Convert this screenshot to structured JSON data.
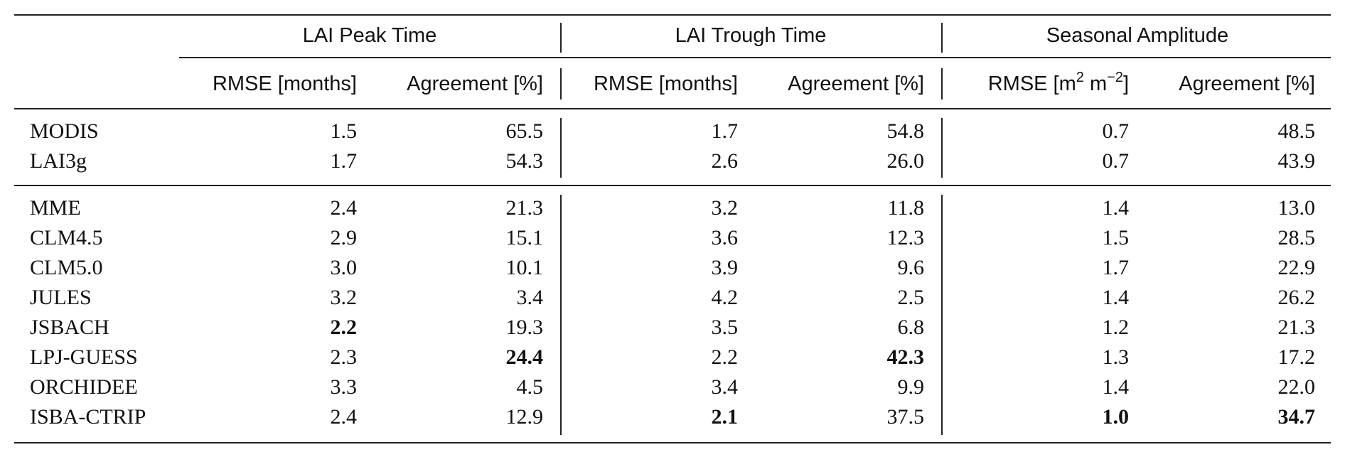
{
  "groups": [
    {
      "label": "LAI Peak Time"
    },
    {
      "label": "LAI Trough Time"
    },
    {
      "label": "Seasonal Amplitude"
    }
  ],
  "subheaders": {
    "rmse_months": "RMSE [months]",
    "agreement": "Agreement [%]",
    "rmse_amp_prefix": "RMSE [m",
    "rmse_amp_exp1": "2",
    "rmse_amp_mid": " m",
    "rmse_amp_exp2": "−2",
    "rmse_amp_suffix": "]"
  },
  "obs_rows": [
    {
      "name": "MODIS",
      "values": [
        "1.5",
        "65.5",
        "1.7",
        "54.8",
        "0.7",
        "48.5"
      ],
      "bold": [
        false,
        false,
        false,
        false,
        false,
        false
      ]
    },
    {
      "name": "LAI3g",
      "values": [
        "1.7",
        "54.3",
        "2.6",
        "26.0",
        "0.7",
        "43.9"
      ],
      "bold": [
        false,
        false,
        false,
        false,
        false,
        false
      ]
    }
  ],
  "model_rows": [
    {
      "name": "MME",
      "values": [
        "2.4",
        "21.3",
        "3.2",
        "11.8",
        "1.4",
        "13.0"
      ],
      "bold": [
        false,
        false,
        false,
        false,
        false,
        false
      ]
    },
    {
      "name": "CLM4.5",
      "values": [
        "2.9",
        "15.1",
        "3.6",
        "12.3",
        "1.5",
        "28.5"
      ],
      "bold": [
        false,
        false,
        false,
        false,
        false,
        false
      ]
    },
    {
      "name": "CLM5.0",
      "values": [
        "3.0",
        "10.1",
        "3.9",
        "9.6",
        "1.7",
        "22.9"
      ],
      "bold": [
        false,
        false,
        false,
        false,
        false,
        false
      ]
    },
    {
      "name": "JULES",
      "values": [
        "3.2",
        "3.4",
        "4.2",
        "2.5",
        "1.4",
        "26.2"
      ],
      "bold": [
        false,
        false,
        false,
        false,
        false,
        false
      ]
    },
    {
      "name": "JSBACH",
      "values": [
        "2.2",
        "19.3",
        "3.5",
        "6.8",
        "1.2",
        "21.3"
      ],
      "bold": [
        true,
        false,
        false,
        false,
        false,
        false
      ]
    },
    {
      "name": "LPJ-GUESS",
      "values": [
        "2.3",
        "24.4",
        "2.2",
        "42.3",
        "1.3",
        "17.2"
      ],
      "bold": [
        false,
        true,
        false,
        true,
        false,
        false
      ]
    },
    {
      "name": "ORCHIDEE",
      "values": [
        "3.3",
        "4.5",
        "3.4",
        "9.9",
        "1.4",
        "22.0"
      ],
      "bold": [
        false,
        false,
        false,
        false,
        false,
        false
      ]
    },
    {
      "name": "ISBA-CTRIP",
      "values": [
        "2.4",
        "12.9",
        "2.1",
        "37.5",
        "1.0",
        "34.7"
      ],
      "bold": [
        false,
        false,
        true,
        false,
        true,
        true
      ]
    }
  ]
}
